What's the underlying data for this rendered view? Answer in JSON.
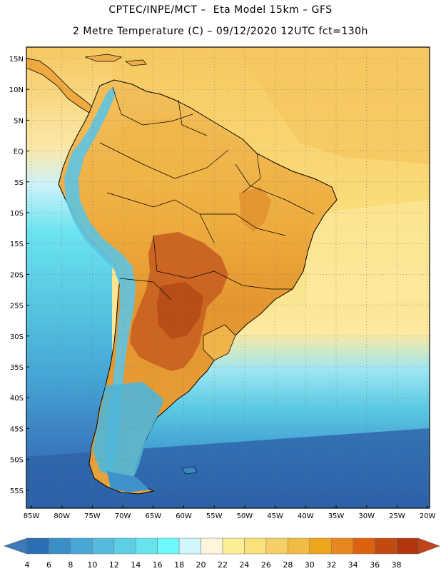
{
  "title": {
    "line1": "CPTEC/INPE/MCT –  Eta Model 15km – GFS",
    "line2": "2 Metre Temperature (C) – 09/12/2020 12UTC fct=130h"
  },
  "lat_labels": [
    "15N",
    "10N",
    "5N",
    "EQ",
    "5S",
    "10S",
    "15S",
    "20S",
    "25S",
    "30S",
    "35S",
    "40S",
    "45S",
    "50S",
    "55S"
  ],
  "lon_labels": [
    "85W",
    "80W",
    "75W",
    "70W",
    "65W",
    "60W",
    "55W",
    "50W",
    "45W",
    "40W",
    "35W",
    "30W",
    "25W",
    "20W"
  ],
  "colorbar": {
    "labels": [
      "4",
      "6",
      "8",
      "10",
      "12",
      "14",
      "16",
      "18",
      "20",
      "22",
      "24",
      "26",
      "28",
      "30",
      "32",
      "34",
      "36",
      "38"
    ],
    "colors": [
      "#3d78b8",
      "#2a6eb4",
      "#3a8fc8",
      "#49a6d6",
      "#55bade",
      "#5ccfe3",
      "#66e3ec",
      "#6cf8fc",
      "#cef6fb",
      "#fdf6dc",
      "#fdee96",
      "#fbe17a",
      "#f5cf63",
      "#f1bb45",
      "#eda51e",
      "#e88720",
      "#dc6210",
      "#c04a10",
      "#b3350d",
      "#c0451a"
    ]
  },
  "map": {
    "ocean_north_color": "#f7cf6a",
    "ocean_warm_color": "#fbe38a",
    "ocean_mid_color": "#5bc9e3",
    "ocean_south_color": "#2c64a8",
    "land_color": "#eead3e",
    "land_hot_color": "#c85f1c",
    "andes_color": "#63c6e4",
    "patagonia_color": "#4ab4d6"
  }
}
